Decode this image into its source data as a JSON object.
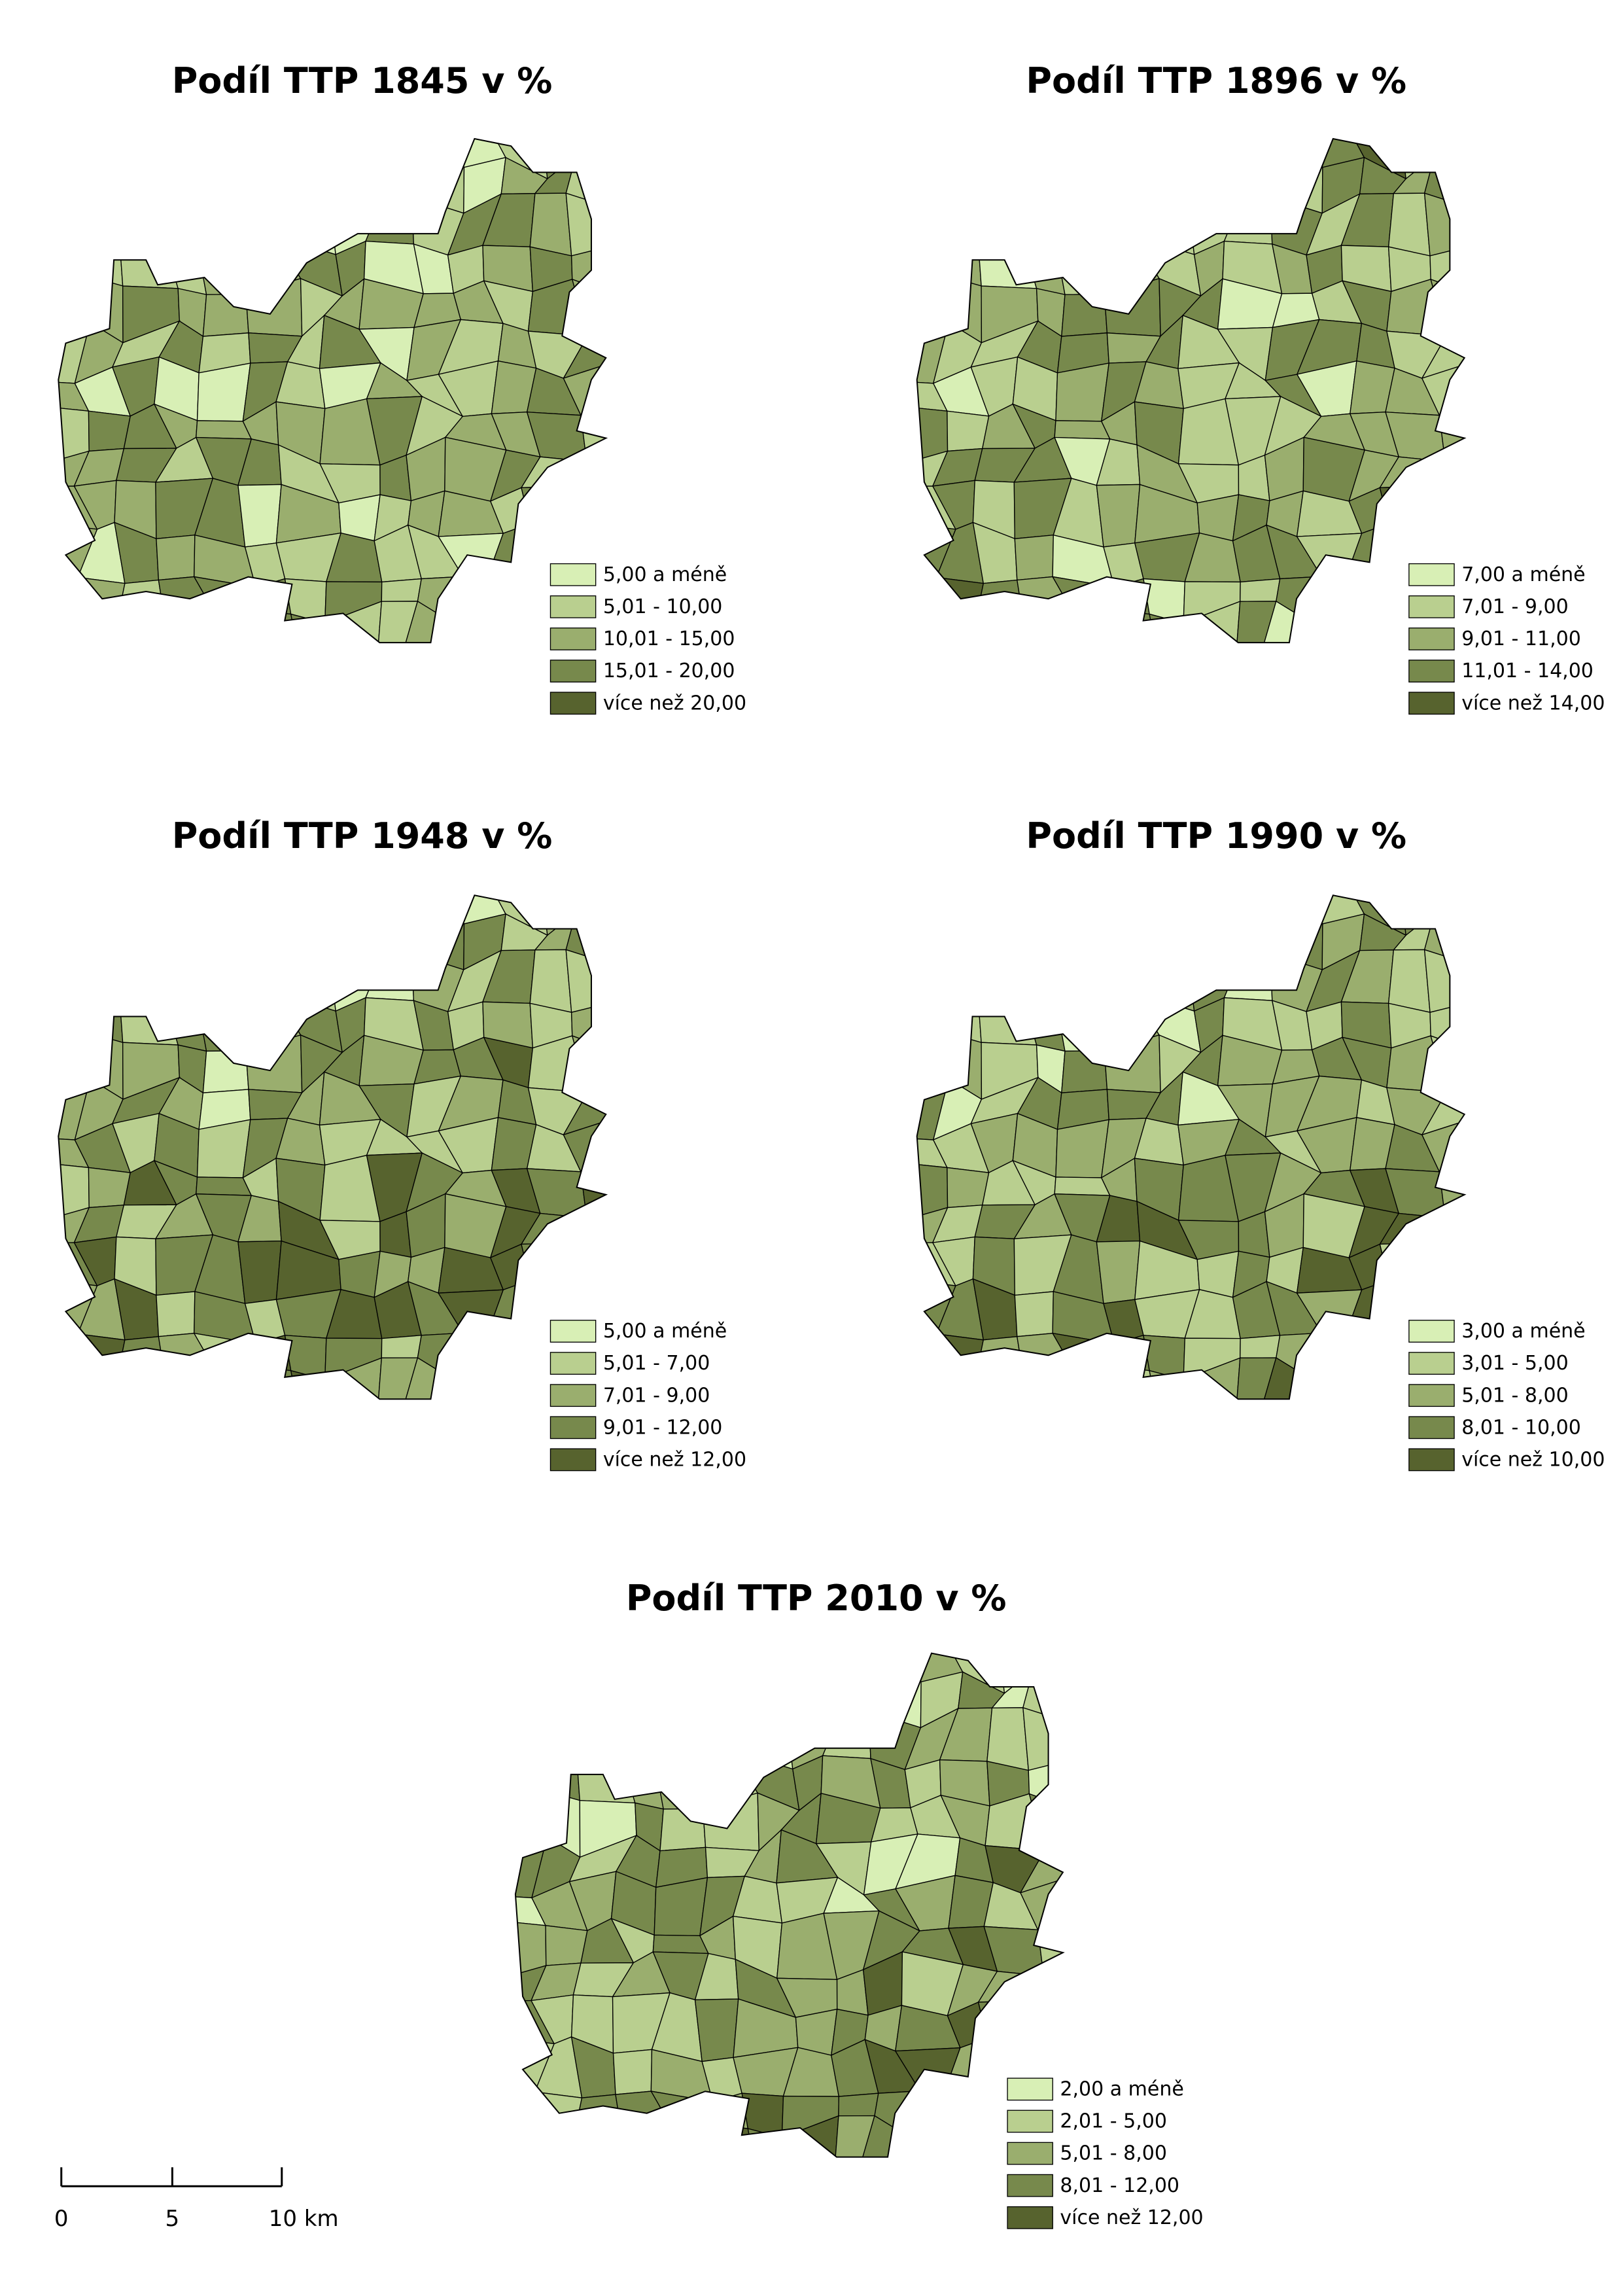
{
  "maps": [
    {
      "title": "Podíl TTP 1845 v %",
      "legend": [
        {
          "label": "5,00 a méně",
          "color": "#d8efb5"
        },
        {
          "label": "5,01 - 10,00",
          "color": "#b9cf8f"
        },
        {
          "label": "10,01 - 15,00",
          "color": "#9aae6e"
        },
        {
          "label": "15,01 - 20,00",
          "color": "#77894c"
        },
        {
          "label": "více než 20,00",
          "color": "#57632e"
        }
      ]
    },
    {
      "title": "Podíl TTP 1896 v %",
      "legend": [
        {
          "label": "7,00 a méně",
          "color": "#d8efb5"
        },
        {
          "label": "7,01 - 9,00",
          "color": "#b9cf8f"
        },
        {
          "label": "9,01 - 11,00",
          "color": "#9aae6e"
        },
        {
          "label": "11,01 - 14,00",
          "color": "#77894c"
        },
        {
          "label": "více než 14,00",
          "color": "#57632e"
        }
      ]
    },
    {
      "title": "Podíl TTP 1948 v %",
      "legend": [
        {
          "label": "5,00 a méně",
          "color": "#d8efb5"
        },
        {
          "label": "5,01 - 7,00",
          "color": "#b9cf8f"
        },
        {
          "label": "7,01 - 9,00",
          "color": "#9aae6e"
        },
        {
          "label": "9,01 - 12,00",
          "color": "#77894c"
        },
        {
          "label": "více než 12,00",
          "color": "#57632e"
        }
      ]
    },
    {
      "title": "Podíl TTP 1990 v %",
      "legend": [
        {
          "label": "3,00 a méně",
          "color": "#d8efb5"
        },
        {
          "label": "3,01 - 5,00",
          "color": "#b9cf8f"
        },
        {
          "label": "5,01 - 8,00",
          "color": "#9aae6e"
        },
        {
          "label": "8,01 - 10,00",
          "color": "#77894c"
        },
        {
          "label": "více než 10,00",
          "color": "#57632e"
        }
      ]
    },
    {
      "title": "Podíl TTP 2010 v %",
      "legend": [
        {
          "label": "2,00 a méně",
          "color": "#d8efb5"
        },
        {
          "label": "2,01 - 5,00",
          "color": "#b9cf8f"
        },
        {
          "label": "5,01 - 8,00",
          "color": "#9aae6e"
        },
        {
          "label": "8,01 - 12,00",
          "color": "#77894c"
        },
        {
          "label": "více než 12,00",
          "color": "#57632e"
        }
      ]
    }
  ],
  "scale_bar": {
    "labels": [
      "0",
      "5",
      "10 km"
    ]
  }
}
